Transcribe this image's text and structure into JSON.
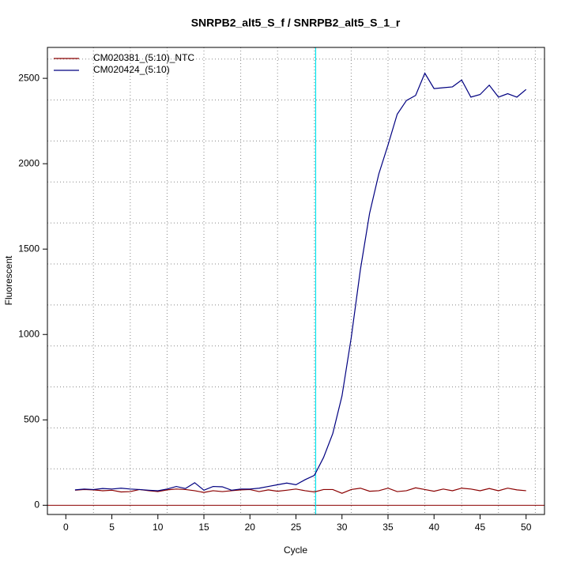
{
  "chart_data": {
    "type": "line",
    "title": "SNRPB2_alt5_S_f / SNRPB2_alt5_S_1_r",
    "x_label": "Cycle",
    "y_label": "Fluorescent",
    "x": [
      1,
      2,
      3,
      4,
      5,
      6,
      7,
      8,
      9,
      10,
      11,
      12,
      13,
      14,
      15,
      16,
      17,
      18,
      19,
      20,
      21,
      22,
      23,
      24,
      25,
      26,
      27,
      28,
      29,
      30,
      31,
      32,
      33,
      34,
      35,
      36,
      37,
      38,
      39,
      40,
      41,
      42,
      43,
      44,
      45,
      46,
      47,
      48,
      49,
      50
    ],
    "series": [
      {
        "name": "CM020381_(5:10)_NTC",
        "color": "#8b0000",
        "values": [
          88,
          92,
          90,
          85,
          88,
          78,
          80,
          92,
          85,
          80,
          90,
          95,
          92,
          85,
          75,
          85,
          80,
          85,
          90,
          92,
          80,
          90,
          82,
          88,
          95,
          85,
          78,
          92,
          92,
          70,
          92,
          100,
          82,
          85,
          100,
          80,
          85,
          102,
          92,
          82,
          95,
          85,
          100,
          95,
          85,
          98,
          85,
          100,
          90,
          85
        ]
      },
      {
        "name": "CM020424_(5:10)",
        "color": "#000080",
        "values": [
          90,
          95,
          92,
          98,
          95,
          100,
          95,
          92,
          88,
          85,
          95,
          110,
          98,
          132,
          88,
          110,
          108,
          88,
          95,
          95,
          100,
          110,
          120,
          130,
          120,
          150,
          175,
          280,
          420,
          640,
          980,
          1380,
          1710,
          1940,
          2110,
          2290,
          2370,
          2400,
          2530,
          2440,
          2445,
          2450,
          2490,
          2390,
          2405,
          2460,
          2390,
          2410,
          2390,
          2435
        ]
      }
    ],
    "xlim": [
      -2,
      52
    ],
    "ylim": [
      -54,
      2681
    ],
    "xticks": [
      0,
      5,
      10,
      15,
      20,
      25,
      30,
      35,
      40,
      45,
      50
    ],
    "yticks": [
      0,
      500,
      1000,
      1500,
      2000,
      2500
    ],
    "xgrid": [
      3,
      7,
      11,
      15,
      19,
      23,
      27,
      31,
      35,
      39,
      43,
      47,
      51
    ],
    "ygrid": [
      213,
      453,
      693,
      933,
      1173,
      1413,
      1653,
      1893,
      2133,
      2373,
      2613
    ],
    "vline": {
      "x": 27.14,
      "color": "#00e5ee"
    },
    "hline": {
      "y": 0,
      "color": "#8b0000"
    },
    "legend": "top-left"
  }
}
